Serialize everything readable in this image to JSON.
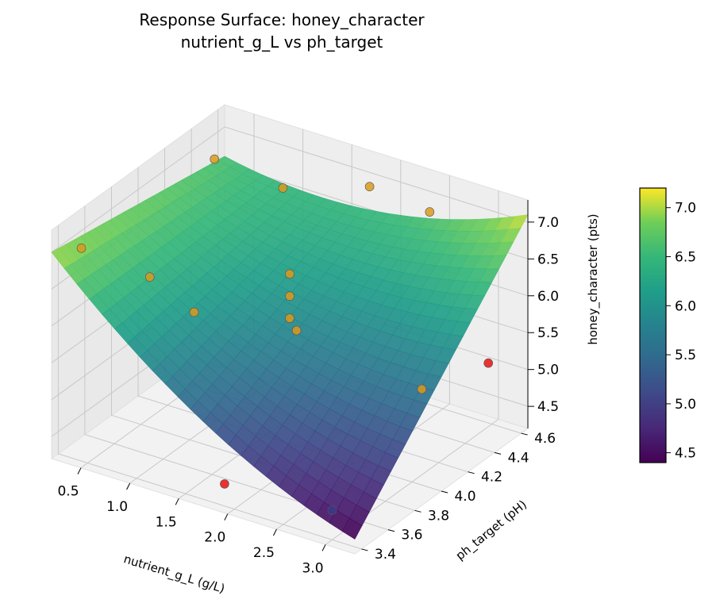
{
  "chart_data": {
    "type": "surface",
    "title": "Response Surface: honey_character",
    "subtitle": "nutrient_g_L vs ph_target",
    "xlabel": "nutrient_g_L (g/L)",
    "ylabel": "ph_target (pH)",
    "zlabel": "honey_character (pts)",
    "x_ticks": [
      "0.5",
      "1.0",
      "1.5",
      "2.0",
      "2.5",
      "3.0"
    ],
    "y_ticks": [
      "3.4",
      "3.6",
      "3.8",
      "4.0",
      "4.2",
      "4.4",
      "4.6"
    ],
    "z_ticks": [
      "4.5",
      "5.0",
      "5.5",
      "6.0",
      "6.5",
      "7.0"
    ],
    "xlim": [
      0.2,
      3.3
    ],
    "ylim": [
      3.35,
      4.65
    ],
    "zlim": [
      4.2,
      7.3
    ],
    "colorbar": {
      "colormap": "viridis",
      "range": [
        4.4,
        7.2
      ],
      "ticks": [
        "4.5",
        "5.0",
        "5.5",
        "6.0",
        "6.5",
        "7.0"
      ]
    },
    "surface_corners": {
      "x0_y0": 7.0,
      "x0_y1": 6.6,
      "x1_y0": 4.4,
      "x1_y1": 7.1
    },
    "points": [
      {
        "x": 0.3,
        "y": 3.5,
        "z": 6.9,
        "color": "orange"
      },
      {
        "x": 0.3,
        "y": 4.5,
        "z": 6.8,
        "color": "orange"
      },
      {
        "x": 1.0,
        "y": 3.5,
        "z": 6.8,
        "color": "orange"
      },
      {
        "x": 1.0,
        "y": 4.5,
        "z": 6.7,
        "color": "orange"
      },
      {
        "x": 1.75,
        "y": 4.0,
        "z": 6.5,
        "color": "orange"
      },
      {
        "x": 1.75,
        "y": 4.0,
        "z": 6.2,
        "color": "orange"
      },
      {
        "x": 1.75,
        "y": 4.0,
        "z": 5.9,
        "color": "orange"
      },
      {
        "x": 1.75,
        "y": 4.6,
        "z": 6.9,
        "color": "orange"
      },
      {
        "x": 2.5,
        "y": 4.5,
        "z": 7.0,
        "color": "orange"
      },
      {
        "x": 2.5,
        "y": 3.5,
        "z": 6.7,
        "color": "orange"
      },
      {
        "x": 3.1,
        "y": 4.0,
        "z": 5.5,
        "color": "orange"
      },
      {
        "x": 0.5,
        "y": 4.2,
        "z": 5.2,
        "color": "orange"
      },
      {
        "x": 1.9,
        "y": 3.4,
        "z": 4.5,
        "color": "red"
      },
      {
        "x": 3.1,
        "y": 4.5,
        "z": 5.2,
        "color": "red"
      },
      {
        "x": 3.0,
        "y": 3.4,
        "z": 4.6,
        "color": "navy"
      }
    ]
  }
}
